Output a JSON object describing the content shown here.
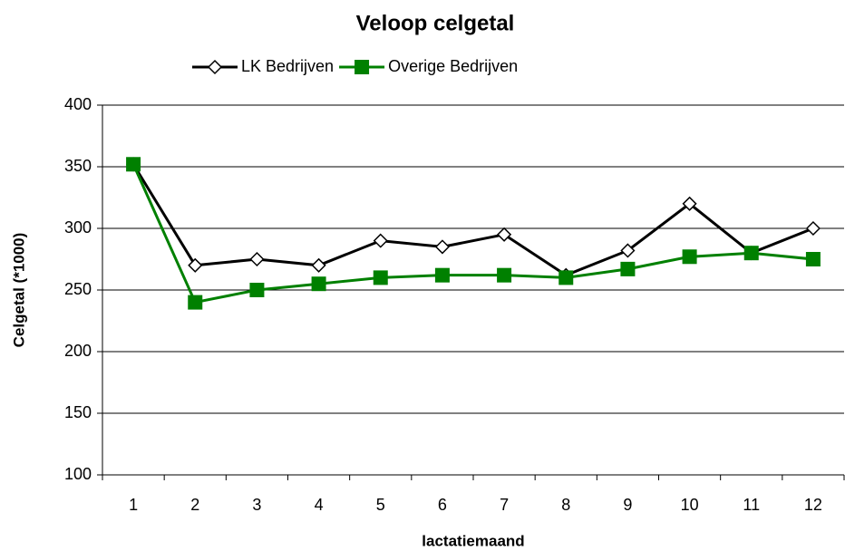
{
  "chart_data": {
    "type": "line",
    "title": "Veloop celgetal",
    "x_label": "lactatiemaand",
    "y_label": "Celgetal (*1000)",
    "categories": [
      "1",
      "2",
      "3",
      "4",
      "5",
      "6",
      "7",
      "8",
      "9",
      "10",
      "11",
      "12"
    ],
    "series": [
      {
        "name": "LK Bedrijven",
        "color": "#000000",
        "marker": "diamond",
        "values": [
          352,
          270,
          275,
          270,
          290,
          285,
          295,
          262,
          282,
          320,
          280,
          300
        ]
      },
      {
        "name": "Overige Bedrijven",
        "color": "#008000",
        "marker": "square",
        "values": [
          352,
          240,
          250,
          255,
          260,
          262,
          262,
          260,
          267,
          277,
          280,
          275
        ]
      }
    ],
    "ylim": [
      100,
      400
    ],
    "yticks": [
      100,
      150,
      200,
      250,
      300,
      350,
      400
    ],
    "grid": true,
    "legend": "top"
  }
}
